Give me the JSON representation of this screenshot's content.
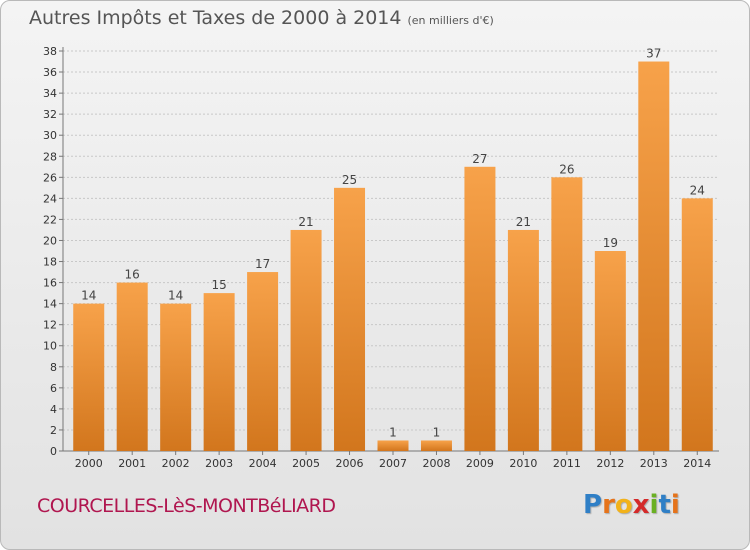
{
  "header": {
    "title": "Autres Impôts et Taxes de 2000 à 2014",
    "subtitle": "(en milliers d'€)"
  },
  "footer": {
    "commune": "COURCELLES-LèS-MONTBéLIARD",
    "logo_letters": [
      {
        "ch": "P",
        "color": "#2f7fc6"
      },
      {
        "ch": "r",
        "color": "#e5731a"
      },
      {
        "ch": "o",
        "color": "#f2b21a"
      },
      {
        "ch": "x",
        "color": "#d42a2a"
      },
      {
        "ch": "i",
        "color": "#6ab023"
      },
      {
        "ch": "t",
        "color": "#2f7fc6"
      },
      {
        "ch": "i",
        "color": "#e5731a"
      }
    ]
  },
  "colors": {
    "bar_light": "#f7a24a",
    "bar_dark": "#d2761d",
    "grid": "#c8c8c8"
  },
  "chart_data": {
    "type": "bar",
    "title": "Autres Impôts et Taxes de 2000 à 2014",
    "subtitle": "(en milliers d'€)",
    "categories": [
      "2000",
      "2001",
      "2002",
      "2003",
      "2004",
      "2005",
      "2006",
      "2007",
      "2008",
      "2009",
      "2010",
      "2011",
      "2012",
      "2013",
      "2014"
    ],
    "values": [
      14,
      16,
      14,
      15,
      17,
      21,
      25,
      1,
      1,
      27,
      21,
      26,
      19,
      37,
      24
    ],
    "yticks": [
      0,
      2,
      4,
      6,
      8,
      10,
      12,
      14,
      16,
      18,
      20,
      22,
      24,
      26,
      28,
      30,
      32,
      34,
      36,
      38
    ],
    "ylim": [
      0,
      38
    ],
    "grid": true,
    "xlabel": "",
    "ylabel": ""
  }
}
